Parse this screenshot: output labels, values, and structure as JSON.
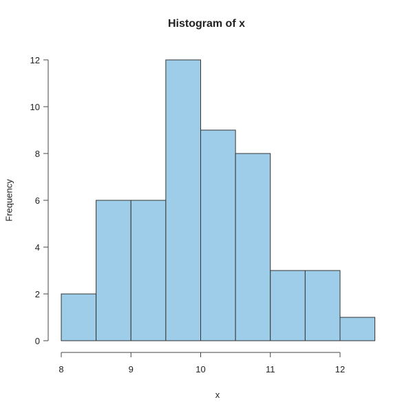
{
  "chart_data": {
    "type": "bar",
    "subtype": "histogram",
    "title": "Histogram of x",
    "xlabel": "x",
    "ylabel": "Frequency",
    "bin_edges": [
      8.0,
      8.5,
      9.0,
      9.5,
      10.0,
      10.5,
      11.0,
      11.5,
      12.0,
      12.5
    ],
    "categories": [
      "8.0-8.5",
      "8.5-9.0",
      "9.0-9.5",
      "9.5-10.0",
      "10.0-10.5",
      "10.5-11.0",
      "11.0-11.5",
      "11.5-12.0",
      "12.0-12.5"
    ],
    "values": [
      2,
      6,
      6,
      12,
      9,
      8,
      3,
      3,
      1
    ],
    "xlim": [
      8,
      12.5
    ],
    "ylim": [
      0,
      12
    ],
    "x_ticks": [
      8,
      9,
      10,
      11,
      12
    ],
    "y_ticks": [
      0,
      2,
      4,
      6,
      8,
      10,
      12
    ],
    "grid": false,
    "legend": null,
    "bar_color": "#9ECDE9",
    "edge_color": "#333333"
  }
}
